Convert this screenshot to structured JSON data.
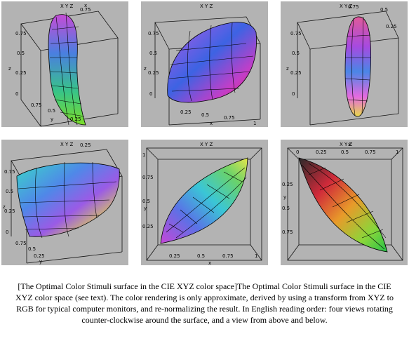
{
  "figure": {
    "panels": [
      {
        "id": "p1",
        "label_top": "X Y Z",
        "axes": [
          "0.75",
          "0.5",
          "0.25",
          "0",
          "0.75",
          "0.5",
          "0.25",
          "0.25",
          "0.5",
          "0.75",
          "1"
        ],
        "axis_names": [
          "x",
          "y",
          "z"
        ]
      },
      {
        "id": "p2",
        "label_top": "X Y Z",
        "axes": [
          "0.75",
          "0.5",
          "0.25",
          "0",
          "1",
          "0.25",
          "0.5",
          "0.75"
        ],
        "axis_names": [
          "x",
          "y",
          "z"
        ]
      },
      {
        "id": "p3",
        "label_top": "X Y Z",
        "axes": [
          "0.75",
          "0.5",
          "0.25",
          "0",
          "1",
          "0.5",
          "0.25",
          "0.5",
          "0.75"
        ],
        "axis_names": [
          "x",
          "y",
          "z"
        ]
      },
      {
        "id": "p4",
        "label_top": "X Y Z",
        "axes": [
          "0.75",
          "0.5",
          "0.25",
          "0",
          "1",
          "0.25",
          "0.5",
          "0.75"
        ],
        "axis_names": [
          "x",
          "y",
          "z"
        ]
      },
      {
        "id": "p5",
        "label_top": "X Y Z",
        "axes": [
          "0.25",
          "0.5",
          "0.75",
          "1",
          "0.25",
          "0.5",
          "0.75",
          "1"
        ],
        "axis_names": [
          "x",
          "y"
        ]
      },
      {
        "id": "p6",
        "label_top": "X Y Z",
        "axes": [
          "0",
          "0.25",
          "0.5",
          "0.75",
          "1",
          "0.25",
          "0.5",
          "0.75"
        ],
        "axis_names": [
          "x",
          "y"
        ]
      }
    ]
  },
  "caption": {
    "text": "[The Optimal Color Stimuli surface in the CIE XYZ color space]The Optimal Color Stimuli surface in the CIE XYZ color space (see text). The color rendering is only approximate, derived by using a transform from XYZ to RGB for typical computer monitors, and re-normalizing the result. In English reading order: four views rotating counter-clockwise around the surface, and a view from above and below."
  }
}
